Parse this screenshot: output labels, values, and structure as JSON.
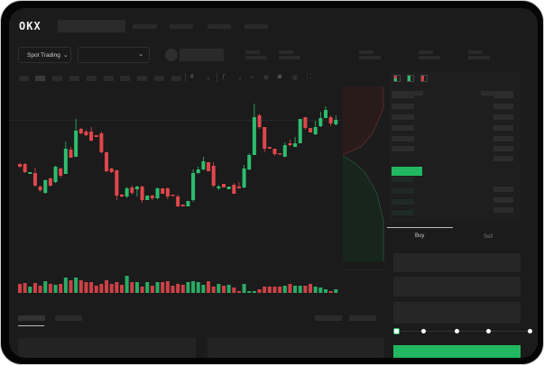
{
  "header": {
    "logo": "OKX"
  },
  "toolbar": {
    "market_type": "Spot Trading"
  },
  "trade": {
    "buy_tab": "Buy",
    "sell_tab": "Sell",
    "leverage_level": 0
  },
  "colors": {
    "up": "#2dbd6e",
    "down": "#e0474c",
    "background": "#1b1b1b",
    "accent": "#22b861"
  },
  "icons": [
    "chevron-down-icon",
    "candle-icon",
    "indicator-icon",
    "draw-icon",
    "camera-icon",
    "settings-icon",
    "fullscreen-icon",
    "orderbook-both-icon",
    "orderbook-buy-icon",
    "orderbook-sell-icon"
  ],
  "chart_data": {
    "type": "candlestick",
    "grid": false,
    "ohlc": [
      [
        58,
        59,
        54,
        55
      ],
      [
        58,
        59,
        48,
        49
      ],
      [
        47,
        49,
        47,
        49
      ],
      [
        48,
        54,
        33,
        34
      ],
      [
        33,
        34,
        27,
        29
      ],
      [
        26,
        41,
        25,
        40
      ],
      [
        42,
        43,
        33,
        34
      ],
      [
        38,
        56,
        37,
        55
      ],
      [
        53,
        54,
        43,
        45
      ],
      [
        47,
        83,
        47,
        75
      ],
      [
        74,
        77,
        65,
        65
      ],
      [
        66,
        108,
        66,
        95
      ],
      [
        97,
        98,
        91,
        92
      ],
      [
        94,
        96,
        89,
        90
      ],
      [
        94,
        99,
        83,
        84
      ],
      [
        90,
        90,
        88,
        88
      ],
      [
        92,
        94,
        70,
        71
      ],
      [
        71,
        72,
        49,
        50
      ],
      [
        53,
        54,
        48,
        49
      ],
      [
        51,
        52,
        18,
        23
      ],
      [
        24,
        25,
        21,
        22
      ],
      [
        22,
        33,
        20,
        31
      ],
      [
        32,
        34,
        24,
        26
      ],
      [
        30,
        34,
        22,
        33
      ],
      [
        33,
        34,
        15,
        18
      ],
      [
        18,
        23,
        18,
        23
      ],
      [
        23,
        24,
        18,
        20
      ],
      [
        20,
        32,
        19,
        31
      ],
      [
        31,
        31,
        25,
        25
      ],
      [
        31,
        32,
        19,
        22
      ],
      [
        24,
        24,
        23,
        23
      ],
      [
        22,
        24,
        10,
        11
      ],
      [
        13,
        13,
        11,
        11
      ],
      [
        11,
        17,
        11,
        17
      ],
      [
        18,
        52,
        16,
        48
      ],
      [
        48,
        55,
        47,
        52
      ],
      [
        52,
        66,
        51,
        61
      ],
      [
        60,
        60,
        50,
        50
      ],
      [
        56,
        60,
        32,
        34
      ],
      [
        31,
        35,
        29,
        33
      ],
      [
        36,
        36,
        32,
        32
      ],
      [
        30,
        33,
        30,
        33
      ],
      [
        35,
        37,
        25,
        25
      ],
      [
        33,
        38,
        31,
        31
      ],
      [
        32,
        57,
        31,
        53
      ],
      [
        52,
        70,
        51,
        68
      ],
      [
        68,
        125,
        68,
        110
      ],
      [
        112,
        114,
        97,
        99
      ],
      [
        99,
        99,
        71,
        75
      ],
      [
        77,
        77,
        75,
        75
      ],
      [
        75,
        75,
        67,
        69
      ],
      [
        70,
        70,
        69,
        69
      ],
      [
        66,
        82,
        66,
        79
      ],
      [
        81,
        85,
        78,
        79
      ],
      [
        77,
        88,
        77,
        81
      ],
      [
        81,
        108,
        81,
        108
      ],
      [
        110,
        110,
        96,
        98
      ],
      [
        98,
        98,
        93,
        93
      ],
      [
        91,
        106,
        90,
        99
      ],
      [
        100,
        116,
        99,
        109
      ],
      [
        109,
        122,
        109,
        118
      ],
      [
        110,
        112,
        100,
        103
      ],
      [
        102,
        112,
        101,
        107
      ]
    ],
    "volume": [
      10,
      11,
      7,
      11,
      8,
      13,
      10,
      9,
      10,
      17,
      14,
      17,
      14,
      12,
      12,
      8,
      10,
      14,
      10,
      12,
      9,
      19,
      12,
      12,
      7,
      12,
      8,
      12,
      12,
      13,
      8,
      10,
      9,
      12,
      13,
      12,
      9,
      13,
      7,
      10,
      8,
      9,
      6,
      2,
      10,
      2,
      2,
      4,
      7,
      7,
      7,
      7,
      8,
      10,
      8,
      8,
      8,
      10,
      7,
      6,
      4,
      2,
      4
    ]
  }
}
